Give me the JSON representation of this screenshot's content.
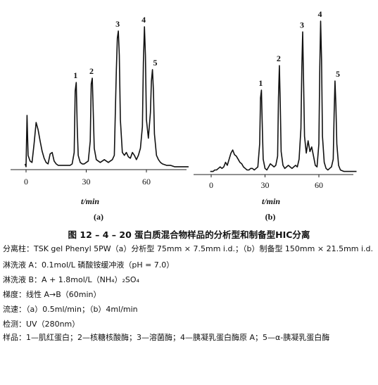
{
  "chart_data": [
    {
      "type": "line",
      "panel_label": "(a)",
      "xlabel": "t/min",
      "x_ticks": [
        "0",
        "30",
        "60"
      ],
      "xlim": [
        -2,
        82
      ],
      "peak_labels": [
        "1",
        "2",
        "3",
        "4",
        "5"
      ],
      "peaks": [
        {
          "label": "1",
          "t": 25,
          "height": 0.61
        },
        {
          "label": "2",
          "t": 33,
          "height": 0.64
        },
        {
          "label": "3",
          "t": 46,
          "height": 0.97
        },
        {
          "label": "4",
          "t": 59,
          "height": 1.0
        },
        {
          "label": "5",
          "t": 63,
          "height": 0.7
        }
      ],
      "series": [
        {
          "x": [
            -0.5,
            0,
            0.5,
            1,
            2,
            3,
            4,
            5,
            6,
            7,
            8,
            9,
            10,
            11,
            12,
            13,
            14,
            15,
            16,
            17,
            18,
            19,
            20,
            21,
            22,
            23,
            24,
            24.5,
            25,
            25.5,
            26,
            27,
            28,
            29,
            30,
            31,
            32,
            32.5,
            33,
            33.5,
            34,
            35,
            36,
            37,
            38,
            39,
            40,
            41,
            42,
            43,
            44,
            45,
            45.5,
            46,
            46.5,
            47,
            48,
            49,
            50,
            51,
            52,
            53,
            54,
            55,
            56,
            57,
            58,
            58.5,
            59,
            59.5,
            60,
            61,
            62,
            62.5,
            63,
            63.5,
            64,
            65,
            66,
            67,
            68,
            70,
            72,
            74,
            76,
            78,
            80,
            81
          ],
          "y": [
            0.04,
            0.02,
            0.38,
            0.1,
            0.06,
            0.05,
            0.18,
            0.33,
            0.28,
            0.2,
            0.13,
            0.08,
            0.05,
            0.04,
            0.11,
            0.12,
            0.06,
            0.04,
            0.03,
            0.03,
            0.03,
            0.03,
            0.03,
            0.03,
            0.03,
            0.04,
            0.12,
            0.55,
            0.61,
            0.3,
            0.1,
            0.05,
            0.04,
            0.04,
            0.05,
            0.06,
            0.2,
            0.6,
            0.64,
            0.4,
            0.15,
            0.07,
            0.06,
            0.05,
            0.06,
            0.07,
            0.06,
            0.05,
            0.06,
            0.07,
            0.1,
            0.7,
            0.92,
            0.97,
            0.8,
            0.35,
            0.12,
            0.1,
            0.12,
            0.09,
            0.08,
            0.12,
            0.1,
            0.07,
            0.1,
            0.15,
            0.3,
            0.75,
            1.0,
            0.8,
            0.35,
            0.22,
            0.4,
            0.62,
            0.7,
            0.55,
            0.25,
            0.1,
            0.07,
            0.05,
            0.04,
            0.03,
            0.03,
            0.02,
            0.02,
            0.02,
            0.02,
            0.02
          ]
        }
      ]
    },
    {
      "type": "line",
      "panel_label": "(b)",
      "xlabel": "t/min",
      "x_ticks": [
        "0",
        "30",
        "60"
      ],
      "xlim": [
        -2,
        82
      ],
      "peak_labels": [
        "1",
        "2",
        "3",
        "4",
        "5"
      ],
      "peaks": [
        {
          "label": "1",
          "t": 28,
          "height": 0.55
        },
        {
          "label": "2",
          "t": 38,
          "height": 0.71
        },
        {
          "label": "3",
          "t": 51,
          "height": 0.93
        },
        {
          "label": "4",
          "t": 61,
          "height": 1.0
        },
        {
          "label": "5",
          "t": 69,
          "height": 0.61
        }
      ],
      "series": [
        {
          "x": [
            -0.5,
            0,
            0.5,
            1,
            2,
            3,
            4,
            5,
            6,
            7,
            8,
            9,
            10,
            11,
            12,
            13,
            14,
            15,
            16,
            17,
            18,
            19,
            20,
            21,
            22,
            23,
            24,
            25,
            26,
            27,
            27.5,
            28,
            28.5,
            29,
            30,
            31,
            32,
            33,
            34,
            35,
            36,
            37,
            37.5,
            38,
            38.5,
            39,
            40,
            41,
            42,
            43,
            44,
            45,
            46,
            47,
            48,
            49,
            50,
            50.5,
            51,
            51.5,
            52,
            53,
            54,
            55,
            56,
            57,
            58,
            59,
            60,
            60.5,
            61,
            61.5,
            62,
            63,
            64,
            65,
            66,
            67,
            68,
            68.5,
            69,
            69.5,
            70,
            71,
            72,
            74,
            76,
            78,
            80,
            81
          ],
          "y": [
            0.02,
            0.02,
            0.02,
            0.02,
            0.03,
            0.03,
            0.04,
            0.05,
            0.04,
            0.05,
            0.08,
            0.06,
            0.1,
            0.14,
            0.16,
            0.13,
            0.12,
            0.1,
            0.08,
            0.07,
            0.05,
            0.04,
            0.03,
            0.03,
            0.04,
            0.04,
            0.03,
            0.04,
            0.05,
            0.2,
            0.5,
            0.55,
            0.3,
            0.1,
            0.04,
            0.03,
            0.05,
            0.07,
            0.06,
            0.05,
            0.06,
            0.12,
            0.5,
            0.71,
            0.45,
            0.15,
            0.06,
            0.04,
            0.05,
            0.06,
            0.05,
            0.04,
            0.05,
            0.06,
            0.05,
            0.1,
            0.3,
            0.7,
            0.93,
            0.6,
            0.25,
            0.14,
            0.22,
            0.15,
            0.18,
            0.12,
            0.06,
            0.05,
            0.2,
            0.7,
            1.0,
            0.75,
            0.25,
            0.08,
            0.04,
            0.03,
            0.04,
            0.05,
            0.1,
            0.4,
            0.61,
            0.45,
            0.2,
            0.06,
            0.03,
            0.02,
            0.02,
            0.02,
            0.02,
            0.02
          ]
        }
      ]
    }
  ],
  "caption": "图 12 – 4 – 20   蛋白质混合物样品的分析型和制备型HIC分离",
  "notes": [
    "分离柱：TSK gel Phenyl 5PW（a）分析型 75mm × 7.5mm i.d.；（b）制备型 150mm × 21.5mm i.d.",
    "淋洗液 A：0.1mol/L 磷酸铵缓冲液（pH = 7.0）",
    "淋洗液 B：A + 1.8mol/L（NH₄）₂SO₄",
    "梯度：线性 A→B（60min）",
    "流速：（a）0.5ml/min；（b）4ml/min",
    "检测：UV（280nm）",
    "样品：1—肌红蛋白；2—核糖核酸酶；3—溶菌酶；4—胰凝乳蛋白酶原 A；5—α-胰凝乳蛋白酶"
  ]
}
